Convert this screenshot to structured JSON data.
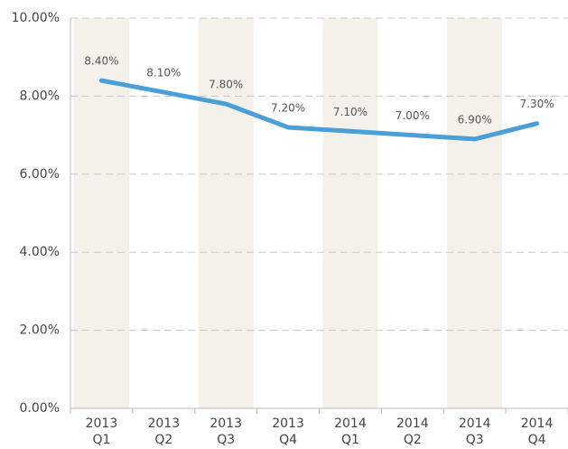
{
  "chart_data": {
    "type": "line",
    "categories": [
      [
        "2013",
        "Q1"
      ],
      [
        "2013",
        "Q2"
      ],
      [
        "2013",
        "Q3"
      ],
      [
        "2013",
        "Q4"
      ],
      [
        "2014",
        "Q1"
      ],
      [
        "2014",
        "Q2"
      ],
      [
        "2014",
        "Q3"
      ],
      [
        "2014",
        "Q4"
      ]
    ],
    "series": [
      {
        "color": "#4a9fd8",
        "values": [
          8.4,
          8.1,
          7.8,
          7.2,
          7.1,
          7.0,
          6.9,
          7.3
        ],
        "value_labels": [
          "8.40%",
          "8.10%",
          "7.80%",
          "7.20%",
          "7.10%",
          "7.00%",
          "6.90%",
          "7.30%"
        ]
      }
    ],
    "ylim": [
      0,
      10
    ],
    "yticks": [
      {
        "value": 0,
        "label": "0.00%"
      },
      {
        "value": 2,
        "label": "2.00%"
      },
      {
        "value": 4,
        "label": "4.00%"
      },
      {
        "value": 6,
        "label": "6.00%"
      },
      {
        "value": 8,
        "label": "8.00%"
      },
      {
        "value": 10,
        "label": "10.00%"
      }
    ],
    "grid": true,
    "band_color": "#f3f1ea"
  }
}
